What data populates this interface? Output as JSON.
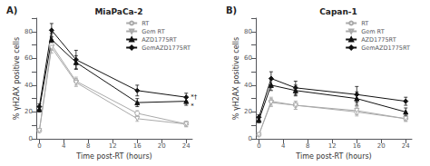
{
  "chart_data": [
    {
      "type": "line",
      "panel_label": "A)",
      "title": "MiaPaCa-2",
      "xlabel": "Time post-RT (hours)",
      "ylabel": "% γH2AX positive cells",
      "x": [
        0,
        2,
        6,
        16,
        24
      ],
      "series": [
        {
          "name": "RT",
          "color": "#aaaaaa",
          "marker": "circle_open",
          "values": [
            6,
            70,
            43,
            19,
            11
          ],
          "yerr": [
            1,
            4,
            3,
            2,
            2
          ]
        },
        {
          "name": "Gem RT",
          "color": "#aaaaaa",
          "marker": "triangle_down_open",
          "values": [
            6,
            68,
            42,
            15,
            11
          ],
          "yerr": [
            1,
            4,
            3,
            2,
            2
          ]
        },
        {
          "name": "AZD1775RT",
          "color": "#111111",
          "marker": "triangle_up",
          "values": [
            22,
            74,
            57,
            27,
            28
          ],
          "yerr": [
            2,
            5,
            5,
            3,
            3
          ]
        },
        {
          "name": "GemAZD1775RT",
          "color": "#111111",
          "marker": "diamond",
          "values": [
            24,
            81,
            59,
            36,
            31
          ],
          "yerr": [
            2,
            5,
            7,
            4,
            3
          ]
        }
      ],
      "xlim": [
        -0.5,
        25
      ],
      "xticks": [
        0,
        4,
        8,
        12,
        16,
        20,
        24
      ],
      "ylim": [
        0,
        90
      ],
      "yticks": [
        0,
        {
          "value": 10,
          "label": ""
        },
        20,
        {
          "value": 30,
          "label": ""
        },
        40,
        {
          "value": 50,
          "label": ""
        },
        60,
        {
          "value": 70,
          "label": ""
        },
        80,
        {
          "value": 90,
          "label": ""
        }
      ],
      "grid": false,
      "legend": "upper right",
      "annotations": [
        {
          "x": 24,
          "y": 31,
          "text": "*†"
        },
        {
          "x": 24,
          "y": 27,
          "text": "*"
        }
      ]
    },
    {
      "type": "line",
      "panel_label": "B)",
      "title": "Capan-1",
      "xlabel": "Time post-RT (hours)",
      "ylabel": "% γH2AX positive cells",
      "x": [
        0,
        2,
        6,
        16,
        24
      ],
      "series": [
        {
          "name": "RT",
          "color": "#aaaaaa",
          "marker": "circle_open",
          "values": [
            3,
            28,
            25,
            20,
            15
          ],
          "yerr": [
            1,
            3,
            3,
            3,
            2
          ]
        },
        {
          "name": "Gem RT",
          "color": "#aaaaaa",
          "marker": "triangle_down_open",
          "values": [
            3,
            27,
            25,
            21,
            15
          ],
          "yerr": [
            1,
            3,
            3,
            3,
            2
          ]
        },
        {
          "name": "AZD1775RT",
          "color": "#111111",
          "marker": "triangle_up",
          "values": [
            14,
            40,
            36,
            30,
            20
          ],
          "yerr": [
            2,
            4,
            4,
            5,
            3
          ]
        },
        {
          "name": "GemAZD1775RT",
          "color": "#111111",
          "marker": "diamond",
          "values": [
            16,
            45,
            38,
            33,
            28
          ],
          "yerr": [
            2,
            5,
            5,
            6,
            3
          ]
        }
      ],
      "xlim": [
        -0.5,
        25
      ],
      "xticks": [
        0,
        4,
        8,
        12,
        16,
        20,
        24
      ],
      "ylim": [
        0,
        90
      ],
      "yticks": [
        0,
        {
          "value": 10,
          "label": ""
        },
        20,
        {
          "value": 30,
          "label": ""
        },
        40,
        {
          "value": 50,
          "label": ""
        },
        60,
        {
          "value": 70,
          "label": ""
        },
        80,
        {
          "value": 90,
          "label": ""
        }
      ],
      "grid": false,
      "legend": "upper right"
    }
  ]
}
